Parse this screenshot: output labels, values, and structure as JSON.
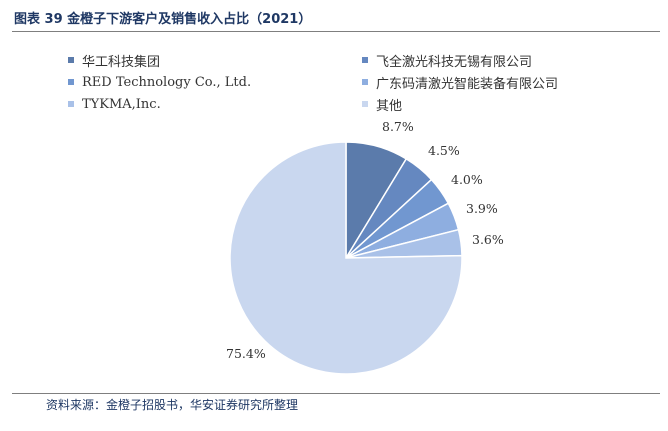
{
  "header": {
    "title": "图表 39 金橙子下游客户及销售收入占比（2021）"
  },
  "footer": {
    "source": "资料来源：金橙子招股书，华安证券研究所整理"
  },
  "chart_data": {
    "type": "pie",
    "title": "图表 39 金橙子下游客户及销售收入占比（2021）",
    "legend_position": "top",
    "slices": [
      {
        "name": "华工科技集团",
        "value": 8.7,
        "label": "8.7%",
        "color": "#5b7bab"
      },
      {
        "name": "飞全激光科技无锡有限公司",
        "value": 4.5,
        "label": "4.5%",
        "color": "#6588c0"
      },
      {
        "name": "RED Technology Co., Ltd.",
        "value": 4.0,
        "label": "4.0%",
        "color": "#7197d0"
      },
      {
        "name": "广东码清激光智能装备有限公司",
        "value": 3.9,
        "label": "3.9%",
        "color": "#8eaee0"
      },
      {
        "name": "TYKMA,Inc.",
        "value": 3.6,
        "label": "3.6%",
        "color": "#a9c1e8"
      },
      {
        "name": "其他",
        "value": 75.4,
        "label": "75.4%",
        "color": "#c9d7ef"
      }
    ]
  }
}
